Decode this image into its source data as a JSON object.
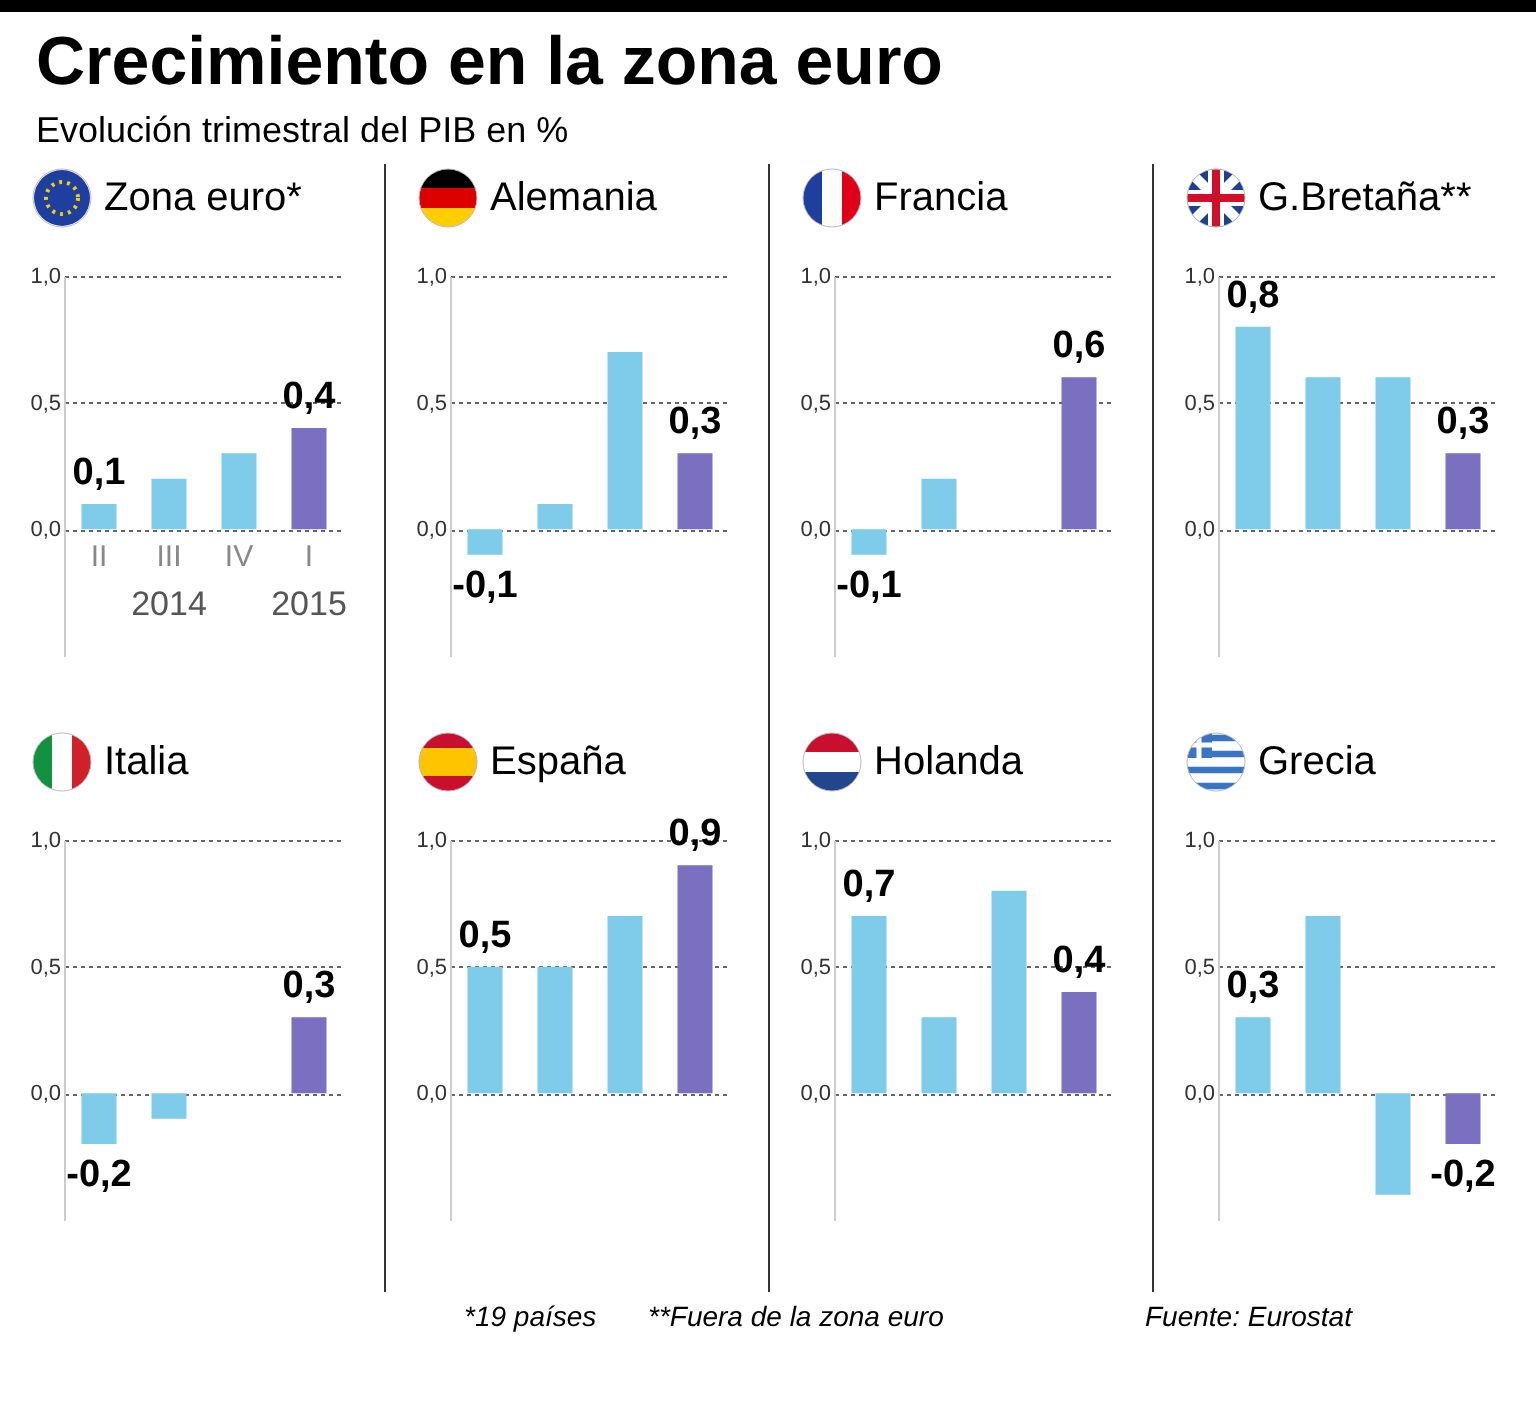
{
  "chart_data": [
    {
      "type": "other",
      "title": "Crecimiento en la zona euro",
      "subtitle": "Evolución trimestral del PIB en %",
      "annotations": [
        "*19 países",
        "**Fuera de la zona euro",
        "Fuente: Eurostat"
      ]
    },
    {
      "type": "bar",
      "title": "Zona euro*",
      "categories": [
        "II",
        "III",
        "IV",
        "I"
      ],
      "values": [
        0.1,
        0.2,
        0.3,
        0.4
      ],
      "colors": [
        "#7ecbea",
        "#7ecbea",
        "#7ecbea",
        "#7a6fc0"
      ],
      "value_labels": [
        "0,1",
        null,
        null,
        "0,4"
      ],
      "annotations": [
        "2014",
        "2015"
      ],
      "ylim": [
        -0.5,
        1.0
      ],
      "yticks": [
        {
          "value": 0,
          "label": "0,0"
        },
        {
          "value": 0.5,
          "label": "0,5"
        },
        {
          "value": 1,
          "label": "1,0"
        }
      ],
      "grid": "y"
    },
    {
      "type": "bar",
      "title": "Alemania",
      "categories": [
        null,
        null,
        null,
        null
      ],
      "values": [
        -0.1,
        0.1,
        0.7,
        0.3
      ],
      "colors": [
        "#7ecbea",
        "#7ecbea",
        "#7ecbea",
        "#7a6fc0"
      ],
      "value_labels": [
        "-0,1",
        null,
        null,
        "0,3"
      ],
      "ylim": [
        -0.5,
        1.0
      ],
      "yticks": [
        {
          "value": 0,
          "label": "0,0"
        },
        {
          "value": 0.5,
          "label": "0,5"
        },
        {
          "value": 1,
          "label": "1,0"
        }
      ],
      "grid": "y",
      "tick_labels": "y"
    },
    {
      "type": "bar",
      "title": "Francia",
      "categories": [
        null,
        null,
        null,
        null
      ],
      "values": [
        -0.1,
        0.2,
        0.0,
        0.6
      ],
      "colors": [
        "#7ecbea",
        "#7ecbea",
        "#7ecbea",
        "#7a6fc0"
      ],
      "value_labels": [
        "-0,1",
        null,
        null,
        "0,6"
      ],
      "ylim": [
        -0.5,
        1.0
      ],
      "yticks": [
        {
          "value": 0,
          "label": "0,0"
        },
        {
          "value": 0.5,
          "label": "0,5"
        },
        {
          "value": 1,
          "label": "1,0"
        }
      ],
      "grid": "y",
      "tick_labels": "y"
    },
    {
      "type": "bar",
      "title": "G.Bretaña**",
      "categories": [
        null,
        null,
        null,
        null
      ],
      "values": [
        0.8,
        0.6,
        0.6,
        0.3
      ],
      "colors": [
        "#7ecbea",
        "#7ecbea",
        "#7ecbea",
        "#7a6fc0"
      ],
      "value_labels": [
        "0,8",
        null,
        null,
        "0,3"
      ],
      "ylim": [
        -0.5,
        1.0
      ],
      "yticks": [
        {
          "value": 0,
          "label": "0,0"
        },
        {
          "value": 0.5,
          "label": "0,5"
        },
        {
          "value": 1,
          "label": "1,0"
        }
      ],
      "grid": "y",
      "tick_labels": "y"
    },
    {
      "type": "bar",
      "title": "Italia",
      "categories": [
        null,
        null,
        null,
        null
      ],
      "values": [
        -0.2,
        -0.1,
        0.0,
        0.3
      ],
      "colors": [
        "#7ecbea",
        "#7ecbea",
        "#7ecbea",
        "#7a6fc0"
      ],
      "value_labels": [
        "-0,2",
        null,
        null,
        "0,3"
      ],
      "ylim": [
        -0.5,
        1.0
      ],
      "yticks": [
        {
          "value": 0,
          "label": "0,0"
        },
        {
          "value": 0.5,
          "label": "0,5"
        },
        {
          "value": 1,
          "label": "1,0"
        }
      ],
      "grid": "y",
      "tick_labels": "y"
    },
    {
      "type": "bar",
      "title": "España",
      "categories": [
        null,
        null,
        null,
        null
      ],
      "values": [
        0.5,
        0.5,
        0.7,
        0.9
      ],
      "colors": [
        "#7ecbea",
        "#7ecbea",
        "#7ecbea",
        "#7a6fc0"
      ],
      "value_labels": [
        "0,5",
        null,
        null,
        "0,9"
      ],
      "ylim": [
        -0.5,
        1.0
      ],
      "yticks": [
        {
          "value": 0,
          "label": "0,0"
        },
        {
          "value": 0.5,
          "label": "0,5"
        },
        {
          "value": 1,
          "label": "1,0"
        }
      ],
      "grid": "y",
      "tick_labels": "y"
    },
    {
      "type": "bar",
      "title": "Holanda",
      "categories": [
        null,
        null,
        null,
        null
      ],
      "values": [
        0.7,
        0.3,
        0.8,
        0.4
      ],
      "colors": [
        "#7ecbea",
        "#7ecbea",
        "#7ecbea",
        "#7a6fc0"
      ],
      "value_labels": [
        "0,7",
        null,
        null,
        "0,4"
      ],
      "ylim": [
        -0.5,
        1.0
      ],
      "yticks": [
        {
          "value": 0,
          "label": "0,0"
        },
        {
          "value": 0.5,
          "label": "0,5"
        },
        {
          "value": 1,
          "label": "1,0"
        }
      ],
      "grid": "y",
      "tick_labels": "y"
    },
    {
      "type": "bar",
      "title": "Grecia",
      "categories": [
        null,
        null,
        null,
        null
      ],
      "values": [
        0.3,
        0.7,
        -0.4,
        -0.2
      ],
      "colors": [
        "#7ecbea",
        "#7ecbea",
        "#7ecbea",
        "#7a6fc0"
      ],
      "value_labels": [
        "0,3",
        null,
        null,
        "-0,2"
      ],
      "ylim": [
        -0.5,
        1.0
      ],
      "yticks": [
        {
          "value": 0,
          "label": "0,0"
        },
        {
          "value": 0.5,
          "label": "0,5"
        },
        {
          "value": 1,
          "label": "1,0"
        }
      ],
      "grid": "y",
      "tick_labels": "y"
    }
  ]
}
